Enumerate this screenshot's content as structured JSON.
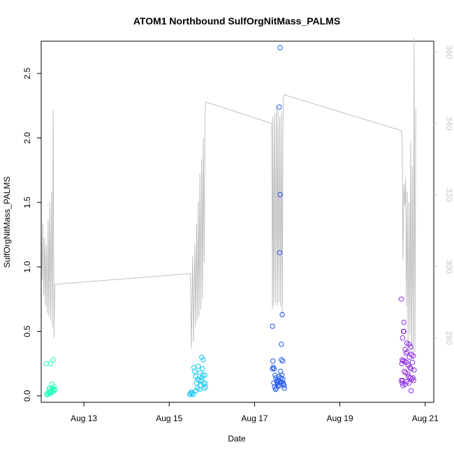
{
  "chart_data": {
    "type": "scatter",
    "title": "ATOM1 Northbound SulfOrgNitMass_PALMS",
    "xlabel": "Date",
    "ylabel": "SulfOrgNitMass_PALMS",
    "x_ticks": [
      "Aug 13",
      "Aug 15",
      "Aug 17",
      "Aug 19",
      "Aug 21"
    ],
    "y_ticks": [
      "0.0",
      "0.5",
      "1.0",
      "1.5",
      "2.0",
      "2.5"
    ],
    "y2_ticks": [
      "280",
      "300",
      "320",
      "340",
      "360"
    ],
    "xlim_days": [
      12.0,
      21.2
    ],
    "ylim": [
      -0.05,
      2.75
    ],
    "y2lim": [
      262,
      363
    ],
    "grid": false,
    "right_axis_color": "#c8c8c8",
    "line_color": "#c0c0c0",
    "series": [
      {
        "date": "Aug 12",
        "color": "#2cffc0",
        "points": [
          [
            12.12,
            0.25
          ],
          [
            12.22,
            0.25
          ],
          [
            12.28,
            0.28
          ],
          [
            12.14,
            0.02
          ],
          [
            12.16,
            0.01
          ],
          [
            12.18,
            0.03
          ],
          [
            12.2,
            0.05
          ],
          [
            12.22,
            0.02
          ],
          [
            12.24,
            0.04
          ],
          [
            12.25,
            0.09
          ],
          [
            12.26,
            0.06
          ],
          [
            12.27,
            0.03
          ],
          [
            12.29,
            0.05
          ],
          [
            12.3,
            0.07
          ],
          [
            12.31,
            0.04
          ],
          [
            12.2,
            0.02
          ],
          [
            12.13,
            0.01
          ],
          [
            12.19,
            0.06
          ],
          [
            12.23,
            0.03
          ],
          [
            12.32,
            0.05
          ]
        ]
      },
      {
        "date": "Aug 15",
        "color": "#16c8f0",
        "points": [
          [
            15.48,
            0.01
          ],
          [
            15.5,
            0.02
          ],
          [
            15.52,
            0.03
          ],
          [
            15.54,
            0.02
          ],
          [
            15.56,
            0.01
          ],
          [
            15.58,
            0.22
          ],
          [
            15.6,
            0.19
          ],
          [
            15.62,
            0.15
          ],
          [
            15.64,
            0.1
          ],
          [
            15.66,
            0.06
          ],
          [
            15.68,
            0.23
          ],
          [
            15.7,
            0.12
          ],
          [
            15.72,
            0.18
          ],
          [
            15.74,
            0.08
          ],
          [
            15.76,
            0.3
          ],
          [
            15.77,
            0.14
          ],
          [
            15.78,
            0.21
          ],
          [
            15.79,
            0.16
          ],
          [
            15.8,
            0.28
          ],
          [
            15.81,
            0.09
          ],
          [
            15.82,
            0.06
          ],
          [
            15.83,
            0.16
          ],
          [
            15.84,
            0.1
          ],
          [
            15.85,
            0.07
          ],
          [
            15.63,
            0.04
          ],
          [
            15.67,
            0.13
          ],
          [
            15.71,
            0.05
          ],
          [
            15.75,
            0.12
          ]
        ]
      },
      {
        "date": "Aug 17",
        "color": "#2058f0",
        "points": [
          [
            17.6,
            2.7
          ],
          [
            17.58,
            2.24
          ],
          [
            17.6,
            1.56
          ],
          [
            17.59,
            1.11
          ],
          [
            17.65,
            0.63
          ],
          [
            17.42,
            0.54
          ],
          [
            17.63,
            0.4
          ],
          [
            17.63,
            0.28
          ],
          [
            17.66,
            0.27
          ],
          [
            17.43,
            0.27
          ],
          [
            17.44,
            0.22
          ],
          [
            17.46,
            0.21
          ],
          [
            17.42,
            0.21
          ],
          [
            17.48,
            0.16
          ],
          [
            17.5,
            0.14
          ],
          [
            17.52,
            0.11
          ],
          [
            17.54,
            0.1
          ],
          [
            17.56,
            0.12
          ],
          [
            17.58,
            0.08
          ],
          [
            17.6,
            0.1
          ],
          [
            17.62,
            0.14
          ],
          [
            17.64,
            0.16
          ],
          [
            17.66,
            0.13
          ],
          [
            17.68,
            0.09
          ],
          [
            17.7,
            0.06
          ],
          [
            17.45,
            0.1
          ],
          [
            17.47,
            0.07
          ],
          [
            17.49,
            0.05
          ],
          [
            17.51,
            0.06
          ],
          [
            17.53,
            0.12
          ],
          [
            17.55,
            0.08
          ],
          [
            17.57,
            0.15
          ],
          [
            17.61,
            0.19
          ],
          [
            17.63,
            0.11
          ],
          [
            17.67,
            0.1
          ],
          [
            17.69,
            0.08
          ]
        ]
      },
      {
        "date": "Aug 20",
        "color": "#8a2be2",
        "points": [
          [
            20.44,
            0.75
          ],
          [
            20.5,
            0.57
          ],
          [
            20.49,
            0.5
          ],
          [
            20.5,
            0.5
          ],
          [
            20.47,
            0.45
          ],
          [
            20.57,
            0.41
          ],
          [
            20.62,
            0.4
          ],
          [
            20.53,
            0.36
          ],
          [
            20.66,
            0.38
          ],
          [
            20.55,
            0.33
          ],
          [
            20.58,
            0.34
          ],
          [
            20.63,
            0.3
          ],
          [
            20.68,
            0.32
          ],
          [
            20.72,
            0.31
          ],
          [
            20.46,
            0.28
          ],
          [
            20.48,
            0.27
          ],
          [
            20.52,
            0.27
          ],
          [
            20.56,
            0.26
          ],
          [
            20.6,
            0.24
          ],
          [
            20.64,
            0.22
          ],
          [
            20.67,
            0.21
          ],
          [
            20.7,
            0.26
          ],
          [
            20.74,
            0.2
          ],
          [
            20.45,
            0.25
          ],
          [
            20.51,
            0.19
          ],
          [
            20.54,
            0.18
          ],
          [
            20.59,
            0.17
          ],
          [
            20.61,
            0.15
          ],
          [
            20.65,
            0.14
          ],
          [
            20.69,
            0.13
          ],
          [
            20.71,
            0.14
          ],
          [
            20.73,
            0.12
          ],
          [
            20.46,
            0.1
          ],
          [
            20.48,
            0.08
          ],
          [
            20.53,
            0.09
          ],
          [
            20.57,
            0.11
          ],
          [
            20.62,
            0.1
          ],
          [
            20.67,
            0.04
          ],
          [
            20.44,
            0.12
          ],
          [
            20.47,
            0.12
          ]
        ]
      }
    ],
    "line": {
      "comment": "gray series on right axis (values in right-axis units)",
      "points": [
        [
          12.0,
          310
        ],
        [
          12.02,
          296
        ],
        [
          12.04,
          312
        ],
        [
          12.06,
          292
        ],
        [
          12.08,
          308
        ],
        [
          12.1,
          289
        ],
        [
          12.12,
          306
        ],
        [
          12.14,
          287
        ],
        [
          12.16,
          313
        ],
        [
          12.18,
          286
        ],
        [
          12.2,
          318
        ],
        [
          12.22,
          285
        ],
        [
          12.24,
          321
        ],
        [
          12.26,
          283
        ],
        [
          12.28,
          344
        ],
        [
          12.3,
          280
        ],
        [
          12.32,
          295
        ],
        [
          15.5,
          298
        ],
        [
          15.52,
          277
        ],
        [
          15.55,
          303
        ],
        [
          15.57,
          279
        ],
        [
          15.6,
          306
        ],
        [
          15.62,
          283
        ],
        [
          15.64,
          312
        ],
        [
          15.66,
          285
        ],
        [
          15.68,
          318
        ],
        [
          15.7,
          286
        ],
        [
          15.72,
          326
        ],
        [
          15.74,
          288
        ],
        [
          15.76,
          330
        ],
        [
          15.78,
          291
        ],
        [
          15.8,
          336
        ],
        [
          15.82,
          301
        ],
        [
          15.84,
          342
        ],
        [
          15.86,
          346
        ],
        [
          17.4,
          340
        ],
        [
          17.41,
          319
        ],
        [
          17.42,
          288
        ],
        [
          17.43,
          342
        ],
        [
          17.45,
          289
        ],
        [
          17.47,
          343
        ],
        [
          17.49,
          290
        ],
        [
          17.51,
          345
        ],
        [
          17.53,
          289
        ],
        [
          17.55,
          344
        ],
        [
          17.57,
          290
        ],
        [
          17.59,
          342
        ],
        [
          17.61,
          289
        ],
        [
          17.63,
          343
        ],
        [
          17.65,
          286
        ],
        [
          17.67,
          347
        ],
        [
          17.7,
          348
        ],
        [
          20.44,
          338
        ],
        [
          20.46,
          336
        ],
        [
          20.48,
          302
        ],
        [
          20.5,
          323
        ],
        [
          20.52,
          317
        ],
        [
          20.54,
          325
        ],
        [
          20.56,
          289
        ],
        [
          20.58,
          321
        ],
        [
          20.6,
          278
        ],
        [
          20.62,
          318
        ],
        [
          20.64,
          281
        ],
        [
          20.66,
          335
        ],
        [
          20.68,
          276
        ],
        [
          20.7,
          328
        ],
        [
          20.72,
          274
        ],
        [
          20.74,
          364
        ],
        [
          20.76,
          276
        ],
        [
          20.78,
          344
        ]
      ]
    }
  }
}
